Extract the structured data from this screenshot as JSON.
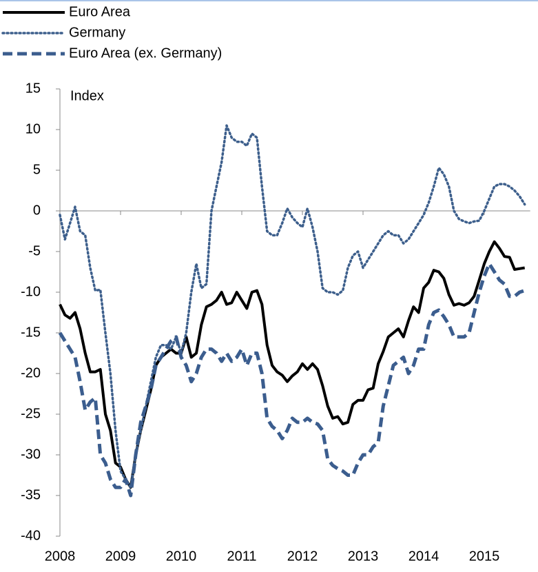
{
  "chart_data": {
    "type": "line",
    "annotation": "Index",
    "categories": [
      2008,
      null,
      null,
      null,
      null,
      null,
      null,
      null,
      null,
      null,
      null,
      null,
      2009,
      null,
      null,
      null,
      null,
      null,
      null,
      null,
      null,
      null,
      null,
      null,
      2010,
      null,
      null,
      null,
      null,
      null,
      null,
      null,
      null,
      null,
      null,
      null,
      2011,
      null,
      null,
      null,
      null,
      null,
      null,
      null,
      null,
      null,
      null,
      null,
      2012,
      null,
      null,
      null,
      null,
      null,
      null,
      null,
      null,
      null,
      null,
      null,
      2013,
      null,
      null,
      null,
      null,
      null,
      null,
      null,
      null,
      null,
      null,
      null,
      2014,
      null,
      null,
      null,
      null,
      null,
      null,
      null,
      null,
      null,
      null,
      null,
      2015,
      null,
      null,
      null,
      null,
      null,
      null,
      null,
      null
    ],
    "ylim": [
      -40,
      15
    ],
    "yticks": [
      -40,
      -35,
      -30,
      -25,
      -20,
      -15,
      -10,
      -5,
      0,
      5,
      10,
      15
    ],
    "series": [
      {
        "name": "Euro Area",
        "color": "#000000",
        "style": "solid",
        "values": [
          -11.5,
          -12.8,
          -13.2,
          -12.5,
          -14.5,
          -17.5,
          -19.8,
          -19.8,
          -19.5,
          -25,
          -27,
          -31,
          -31.5,
          -33,
          -34,
          -30,
          -27,
          -24.5,
          -22,
          -19,
          -18,
          -17.5,
          -17,
          -17.5,
          -17.5,
          -15.5,
          -18,
          -17.5,
          -14,
          -11.8,
          -11.5,
          -11,
          -10,
          -11.5,
          -11.3,
          -10,
          -11,
          -12,
          -10,
          -9.8,
          -11.5,
          -16.5,
          -19,
          -19.8,
          -20.2,
          -21,
          -20.3,
          -19.8,
          -18.8,
          -19.5,
          -18.8,
          -19.5,
          -21.5,
          -24,
          -25.5,
          -25.3,
          -26.2,
          -26,
          -23.8,
          -23.3,
          -23.3,
          -22,
          -21.8,
          -18.8,
          -17.3,
          -15.5,
          -15,
          -14.5,
          -15.5,
          -13.5,
          -11.8,
          -12.5,
          -9.5,
          -8.8,
          -7.3,
          -7.5,
          -8.3,
          -10.3,
          -11.6,
          -11.4,
          -11.6,
          -11.3,
          -10.5,
          -8.5,
          -6.5,
          -5,
          -3.8,
          -4.6,
          -5.6,
          -5.7,
          -7.2,
          -7.1,
          -7.0
        ]
      },
      {
        "name": "Germany",
        "color": "#3d5f8c",
        "style": "dotted",
        "values": [
          -0.5,
          -3.5,
          -1.5,
          0.5,
          -2.5,
          -3,
          -7,
          -9.8,
          -9.7,
          -15,
          -20,
          -27,
          -32,
          -33,
          -34,
          -30,
          -27,
          -24,
          -21,
          -18,
          -16.5,
          -16.5,
          -17,
          -15.5,
          -17.5,
          -15,
          -10,
          -6.5,
          -9.5,
          -9,
          0,
          3,
          6,
          10.5,
          9,
          8.5,
          8.5,
          8,
          9.5,
          9,
          3,
          -2.5,
          -3,
          -3,
          -1.5,
          0.3,
          -0.8,
          -1.5,
          -2,
          0.3,
          -2,
          -5,
          -9.5,
          -10,
          -10,
          -10.3,
          -9.8,
          -7,
          -5.5,
          -5,
          -7,
          -6,
          -5,
          -4,
          -3,
          -2.5,
          -3,
          -3,
          -4,
          -3.5,
          -2.5,
          -1.5,
          -0.5,
          1,
          3,
          5.3,
          4.5,
          3,
          0,
          -1,
          -1.3,
          -1.5,
          -1.3,
          -1.2,
          0,
          1.5,
          3,
          3.3,
          3.3,
          3,
          2.5,
          1.8,
          0.8
        ]
      },
      {
        "name": "Euro Area (ex. Germany)",
        "color": "#3b5d8e",
        "style": "dashed",
        "values": [
          -15,
          -16,
          -17,
          -18,
          -21,
          -24.5,
          -23.5,
          -23,
          -30,
          -31,
          -33,
          -34,
          -34,
          -33,
          -35,
          -30,
          -26,
          -24,
          -22,
          -19,
          -18,
          -17,
          -16,
          -15.5,
          -18,
          -19,
          -21,
          -20,
          -18,
          -17,
          -17,
          -17.5,
          -18.5,
          -17.5,
          -18.5,
          -18,
          -17,
          -19,
          -17.5,
          -17.5,
          -20,
          -25.5,
          -26.5,
          -27,
          -28,
          -27,
          -25.5,
          -26,
          -26,
          -25.5,
          -26,
          -26.2,
          -27,
          -30.5,
          -31.3,
          -31.7,
          -32,
          -32.5,
          -32.5,
          -31,
          -30,
          -30,
          -29,
          -28.5,
          -24,
          -21.5,
          -19,
          -18.5,
          -18,
          -20,
          -19,
          -17,
          -17,
          -14,
          -12.5,
          -12.2,
          -13,
          -14,
          -15.5,
          -15.5,
          -15.5,
          -15,
          -12.5,
          -10,
          -8,
          -6.5,
          -7.5,
          -8.5,
          -9,
          -10.5,
          -10.5,
          -10,
          -9.8
        ]
      }
    ]
  }
}
